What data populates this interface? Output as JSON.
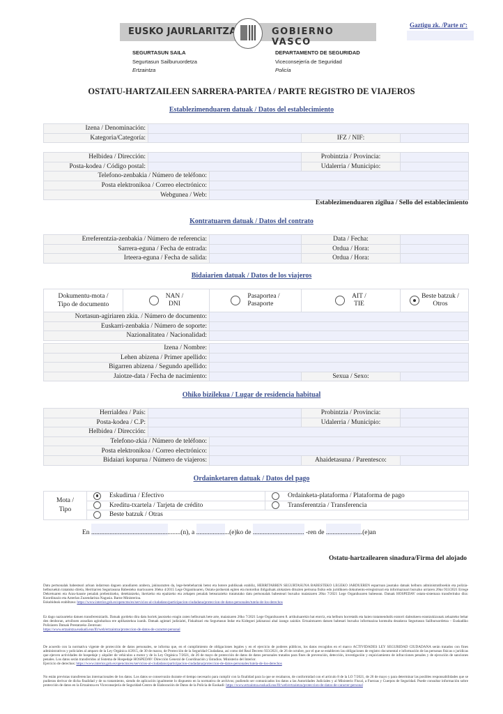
{
  "header": {
    "logo_left": "EUSKO JAURLARITZA",
    "logo_right": "GOBIERNO VASCO",
    "parte_label": "Gaztigu zk. /Parte nº:",
    "dept_eu": {
      "name": "SEGURTASUN SAILA",
      "sub": "Segurtasun Sailburuordetza",
      "unit": "Ertzaintza"
    },
    "dept_es": {
      "name": "DEPARTAMENTO DE SEGURIDAD",
      "sub": "Viceconsejería de Seguridad",
      "unit": "Policía"
    }
  },
  "title": "OSTATU-HARTZAILEEN SARRERA-PARTEA / PARTE REGISTRO DE VIAJEROS",
  "establishment": {
    "heading": "Establezimenduaren datuak / Datos del establecimiento",
    "name": "Izena / Denominación:",
    "category": "Kategoria/Categoría:",
    "nif": "IFZ / NIF:",
    "address": "Helbidea / Dirección:",
    "province": "Probintzia / Provincia:",
    "postal": "Posta-kodea / Código postal:",
    "municipality": "Udalerria / Municipio:",
    "phone": "Telefono-zenbakia / Número de teléfono:",
    "email": "Posta elektronikoa / Correo electrónico:",
    "web": "Webgunea / Web:",
    "seal": "Establezimenduaren zigilua / Sello del establecimiento"
  },
  "contract": {
    "heading": "Kontratuaren datuak / Datos del contrato",
    "reference": "Erreferentzia-zenbakia / Número de referencia:",
    "date": "Data / Fecha:",
    "entry": "Sarrera-eguna / Fecha de entrada:",
    "entry_time": "Ordua / Hora:",
    "exit": "Irteera-eguna / Fecha de salida:",
    "exit_time": "Ordua / Hora:"
  },
  "traveler": {
    "heading": "Bidaiarien datuak / Datos de los viajeros",
    "doc_type_1": "Dokumentu-mota /",
    "doc_type_2": "Tipo de documento",
    "doc_options": [
      {
        "l1": "NAN /",
        "l2": "DNI",
        "selected": false
      },
      {
        "l1": "Pasaportea /",
        "l2": "Pasaporte",
        "selected": false
      },
      {
        "l1": "AIT /",
        "l2": "TIE",
        "selected": false
      },
      {
        "l1": "Beste batzuk /",
        "l2": "Otros",
        "selected": true
      }
    ],
    "doc_number": "Nortasun-agiriaren zkia. / Número de documento:",
    "support_number": "Euskarri-zenbakia / Número de soporte:",
    "nationality": "Nazionalitatea / Nacionalidad:",
    "first_name": "Izena / Nombre:",
    "surname1": "Lehen abizena / Primer apellido:",
    "surname2": "Bigarren abizena / Segundo apellido:",
    "birth_date": "Jaiotze-data / Fecha de nacimiento:",
    "sex": "Sexua / Sexo:"
  },
  "residence": {
    "heading": "Ohiko bizilekua / Lugar de residencia habitual",
    "country": "Herrialdea / País:",
    "province": "Probintzia / Provincia:",
    "postal": "Posta-kodea / C.P:",
    "municipality": "Udalerria / Municipio:",
    "address": "Helbidea / Dirección:",
    "phone": "Telefono-zkia / Número de teléfono:",
    "email": "Posta elektronikoa / Correo electrónico:",
    "travelers": "Bidaiari kopurua / Número de viajeros:",
    "kinship": "Ahaidetasuna / Parentesco:"
  },
  "payment": {
    "heading": "Ordainketaren datuak / Datos del pago",
    "type_1": "Mota /",
    "type_2": "Tipo",
    "options": [
      {
        "label": "Eskudirua / Efectivo",
        "selected": true
      },
      {
        "label": "Ordainketa-plataforma / Plataforma de pago",
        "selected": false
      },
      {
        "label": "Kreditu-txartela / Tarjeta de crédito",
        "selected": false
      },
      {
        "label": "Transferentzia / Transferencia",
        "selected": false
      },
      {
        "label": "Beste batzuk / Otras",
        "selected": false
      }
    ]
  },
  "place_date": {
    "en": "En",
    "d1": "......................................................(n), a",
    "d2": "....................(e)ko de",
    "d3": "...............................",
    "d4": "-ren de",
    "d5": "......................(e)an"
  },
  "signature": "Ostatu-hartzailearen sinadura/Firma del alojado",
  "footer": {
    "p1": "Datu pertsonalak babesteari arloan indarrean dagoen araudiaren arabera, jakinarazten da, lege-betebeharrak betez eta botere publikoak erabiliz, HERRITARREN SEGURTASUNA BABESTEKO LEGEKO JARDUEREN esparruan jasotako datuak helburu administratiboekin eta polizia-helburuekin tratatuko direla, Herritarren Segurtasuna Babesteko martxoaren 30eko 4/2015 Lege Organikoaren, Ostatu-jarduerak egiten eta motordun ibilgailuak alokatzen dituzten pertsona fisiko edo juridikoen dokumentu-erregistroari eta informazioari buruzko urriaren 26ko 933/2021 Errege Dekretuaren eta Arau-hauste penalak prebenitzeko, detektatzeko, ikertzeko eta epaitzeko eta zehapen penalak betearazteko tratatutako datu pertsonalak babesteari buruzko maiatzaren 26ko 7/2021 Lege Organikoaren babesean. Datuak HOSPEDAV ostatu-sistemara transferituko dira: Koordinazio eta Azterlan Zuzendaritza Nagusia. Barne Ministerioa.",
    "p1_link_label": "Eskubideak erabiltzea:",
    "p1_link": "https://www.interior.gob.es/opencms/es/servicios-al-ciudadano/participacion-ciudadana/proteccion-de-datos-personales/tutela-de-los-derechos",
    "p2": "Ez dago nazioarteko datuen transferentziarik. Datuak gordeko dira datu horiek jasotzeko eragin zuten helburuak bete arte, maiatzaren 26ko 7/2021 Lege Organikoaren 8. artikuluarekin bat etorriz, eta helburu horretatik eta haien tratamendutik eratorri daitezkeen erantzukizunak zehazteko behar den denboran, artxiboen araudian aginduzkoa ere aplikatzekoa izanik. Datuak agintari judizialei, Fiskaltzari eta Segurtasun Indar eta Kidegoei jakinarazi ahal izango zaizkie. Ertzaintzaren datuen babesari buruzko informazioa kontsulta dezakezu Segurtasun Sailburuordetza – Euskadiko Poliziaren Datuak Prestatzeko Zentroan:",
    "p2_link": "https://www.ertzaintza.euskadi.eus/lfr/web/ertzaintza/proteccion-de-datos-de-caracter-personal",
    "p3": "De acuerdo con la normativa vigente de protección de datos personales, se informa que, en el cumplimiento de obligaciones legales y en el ejercicio de poderes públicos, los datos recogidos en el marco ACTIVIDADES LEY SEGURIDAD CIUDADANA serán tratados con fines administrativos y policiales al amparo de la Ley Orgánica 4/2015, de 30 de marzo, de Protección de la Seguridad Ciudadana, así como del Real Decreto 933/2021, de 26 de octubre, por el que se establecen las obligaciones de registro documental e información de las personas físicas o jurídicas que ejercen actividades de hospedaje y alquiler de vehículos a motor y de la Ley Orgánica 7/2021, de 26 de mayo de protección de datos de datos personales tratados para fines de prevención, detección, investigación y enjuiciamiento de infracciones penales y de ejecución de sanciones penales. Los datos serán transferidos al Sistema de Hospedaje HOSPEDAV: Dirección General de Coordinación y Estudios. Ministerio del Interior.",
    "p3_link_label": "Ejercicio de derechos:",
    "p3_link": "https://www.interior.gob.es/opencms/es/servicios-al-ciudadano/participacion-ciudadana/proteccion-de-datos-personales/tutela-de-los-derechos",
    "p4": "No están previstas transferencias internacionales de los datos. Los datos se conservarán durante el tiempo necesario para cumplir con la finalidad para la que se recabaron, de conformidad con el artículo 8 de la LO 7/2021, de 26 de mayo y para determinar las posibles responsabilidades que se pudieran derivar de dicha finalidad y de su tratamiento, siendo de aplicación igualmente lo dispuesto en la normativa de archivos; pudiendo ser comunicados los datos a las Autoridades Judiciales y al Ministerio Fiscal, a Fuerzas y Cuerpos de Seguridad. Puede consultar información sobre protección de datos en la Ertzaintza en Viceconsejería de Seguridad-Centro de Elaboración de Datos de la Policía de Euskadi:",
    "p4_link": "https://www.ertzaintza.euskadi.eus/lfr/web/ertzaintza/proteccion-de-datos-de-caracter-personal"
  }
}
